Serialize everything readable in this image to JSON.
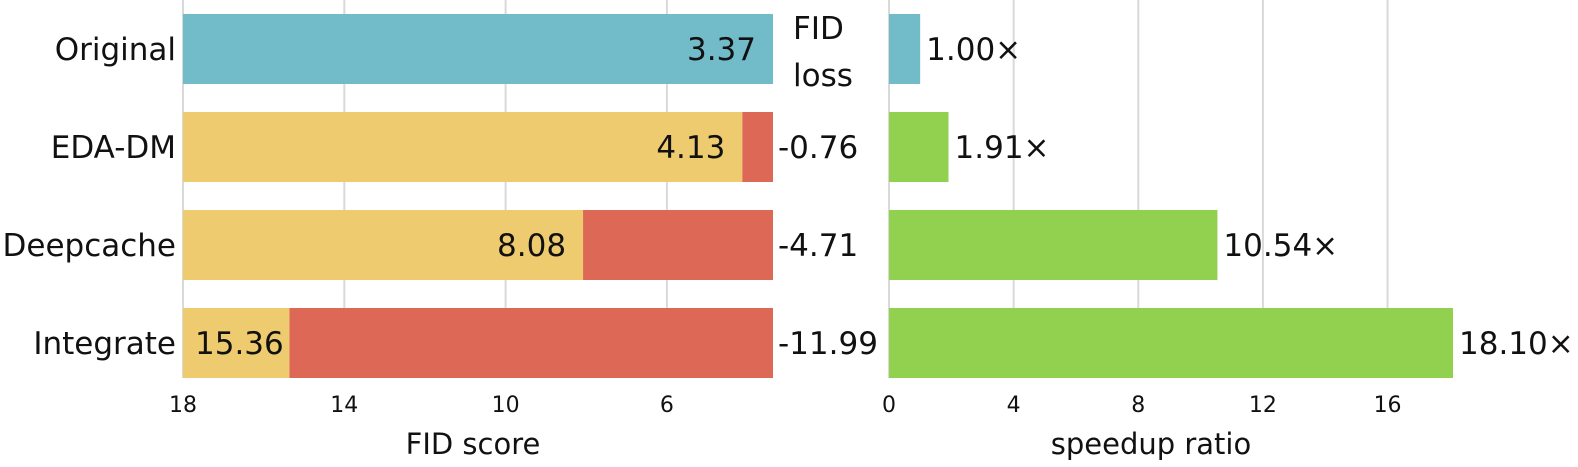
{
  "chart_data": [
    {
      "id": "fid",
      "type": "bar",
      "orientation": "horizontal",
      "categories": [
        "Original",
        "EDA-DM",
        "Deepcache",
        "Integrate"
      ],
      "values": [
        3.37,
        4.13,
        8.08,
        15.36
      ],
      "value_labels": [
        "3.37",
        "4.13",
        "8.08",
        "15.36"
      ],
      "baseline": 3.37,
      "loss_header": "FID\nloss",
      "loss_values": [
        null,
        -0.76,
        -4.71,
        -11.99
      ],
      "loss_labels": [
        "",
        "-0.76",
        "-4.71",
        "-11.99"
      ],
      "xlabel": "FID score",
      "xlim": [
        18,
        3.37
      ],
      "xticks": [
        18,
        14,
        10,
        6
      ],
      "xtick_labels": [
        "18",
        "14",
        "10",
        "6"
      ],
      "colors": {
        "original": "#72bbc9",
        "method": "#eecb6e",
        "loss": "#dd6856"
      }
    },
    {
      "id": "speedup",
      "type": "bar",
      "orientation": "horizontal",
      "categories": [
        "Original",
        "EDA-DM",
        "Deepcache",
        "Integrate"
      ],
      "values": [
        1.0,
        1.91,
        10.54,
        18.1
      ],
      "value_labels": [
        "1.00×",
        "1.91×",
        "10.54×",
        "18.10×"
      ],
      "xlabel": "speedup ratio",
      "xlim": [
        0,
        18.1
      ],
      "xticks": [
        0,
        4,
        8,
        12,
        16
      ],
      "xtick_labels": [
        "0",
        "4",
        "8",
        "12",
        "16"
      ],
      "colors": {
        "original": "#72bbc9",
        "method": "#92d050"
      }
    }
  ]
}
